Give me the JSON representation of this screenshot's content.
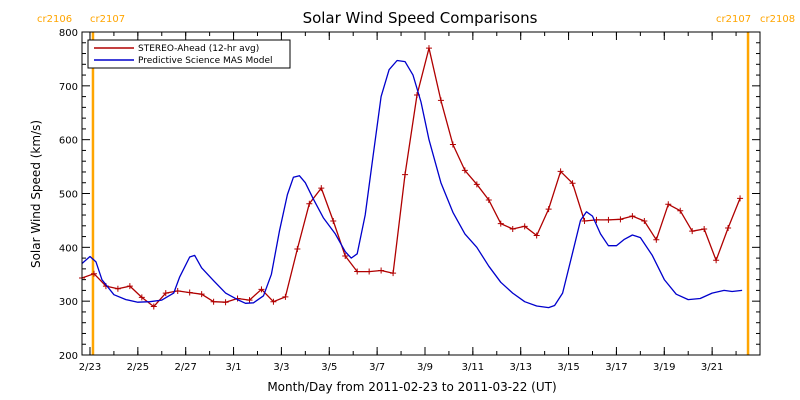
{
  "chart_data": {
    "type": "line",
    "title": "Solar Wind Speed Comparisons",
    "xlabel": "Month/Day from 2011-02-23 to 2011-03-22 (UT)",
    "ylabel": "Solar Wind Speed (km/s)",
    "xlim": [
      "2011-02-22T16:00",
      "2011-03-23T00:00"
    ],
    "ylim": [
      200,
      800
    ],
    "x_ticks": [
      "2/23",
      "2/25",
      "2/27",
      "3/1",
      "3/3",
      "3/5",
      "3/7",
      "3/9",
      "3/11",
      "3/13",
      "3/15",
      "3/17",
      "3/19",
      "3/21"
    ],
    "y_ticks": [
      200,
      300,
      400,
      500,
      600,
      700,
      800
    ],
    "legend_position": "top-left",
    "carrington_markers": [
      {
        "date": "2011-02-23T03:00",
        "left_label": "cr2106",
        "right_label": "cr2107"
      },
      {
        "date": "2011-03-22T12:00",
        "left_label": "cr2107",
        "right_label": "cr2108"
      }
    ],
    "marker_color": "#ffa500",
    "series": [
      {
        "name": "STEREO-Ahead (12-hr avg)",
        "color": "#b00000",
        "marker": "plus",
        "points": [
          [
            "2011-02-22T16:00",
            343
          ],
          [
            "2011-02-23T04:00",
            351
          ],
          [
            "2011-02-23T16:00",
            328
          ],
          [
            "2011-02-24T04:00",
            323
          ],
          [
            "2011-02-24T16:00",
            328
          ],
          [
            "2011-02-25T04:00",
            307
          ],
          [
            "2011-02-25T16:00",
            290
          ],
          [
            "2011-02-26T04:00",
            315
          ],
          [
            "2011-02-26T16:00",
            319
          ],
          [
            "2011-02-27T04:00",
            316
          ],
          [
            "2011-02-27T16:00",
            313
          ],
          [
            "2011-02-28T04:00",
            299
          ],
          [
            "2011-02-28T16:00",
            298
          ],
          [
            "2011-03-01T04:00",
            305
          ],
          [
            "2011-03-01T16:00",
            302
          ],
          [
            "2011-03-02T04:00",
            322
          ],
          [
            "2011-03-02T16:00",
            299
          ],
          [
            "2011-03-03T04:00",
            308
          ],
          [
            "2011-03-03T16:00",
            397
          ],
          [
            "2011-03-04T04:00",
            481
          ],
          [
            "2011-03-04T16:00",
            510
          ],
          [
            "2011-03-05T04:00",
            449
          ],
          [
            "2011-03-05T16:00",
            384
          ],
          [
            "2011-03-06T04:00",
            355
          ],
          [
            "2011-03-06T16:00",
            355
          ],
          [
            "2011-03-07T04:00",
            357
          ],
          [
            "2011-03-07T16:00",
            352
          ],
          [
            "2011-03-08T04:00",
            535
          ],
          [
            "2011-03-08T16:00",
            683
          ],
          [
            "2011-03-09T04:00",
            770
          ],
          [
            "2011-03-09T16:00",
            673
          ],
          [
            "2011-03-10T04:00",
            591
          ],
          [
            "2011-03-10T16:00",
            543
          ],
          [
            "2011-03-11T04:00",
            517
          ],
          [
            "2011-03-11T16:00",
            488
          ],
          [
            "2011-03-12T04:00",
            444
          ],
          [
            "2011-03-12T16:00",
            434
          ],
          [
            "2011-03-13T04:00",
            439
          ],
          [
            "2011-03-13T16:00",
            422
          ],
          [
            "2011-03-14T04:00",
            471
          ],
          [
            "2011-03-14T16:00",
            541
          ],
          [
            "2011-03-15T04:00",
            519
          ],
          [
            "2011-03-15T16:00",
            449
          ],
          [
            "2011-03-16T04:00",
            451
          ],
          [
            "2011-03-16T16:00",
            451
          ],
          [
            "2011-03-17T04:00",
            452
          ],
          [
            "2011-03-17T16:00",
            458
          ],
          [
            "2011-03-18T04:00",
            449
          ],
          [
            "2011-03-18T16:00",
            414
          ],
          [
            "2011-03-19T04:00",
            480
          ],
          [
            "2011-03-19T16:00",
            468
          ],
          [
            "2011-03-20T04:00",
            430
          ],
          [
            "2011-03-20T16:00",
            434
          ],
          [
            "2011-03-21T04:00",
            376
          ],
          [
            "2011-03-21T16:00",
            436
          ],
          [
            "2011-03-22T04:00",
            491
          ]
        ]
      },
      {
        "name": "Predictive Science MAS Model",
        "color": "#0000cc",
        "marker": "none",
        "points": [
          [
            "2011-02-22T16:00",
            370
          ],
          [
            "2011-02-23T00:00",
            383
          ],
          [
            "2011-02-23T06:00",
            373
          ],
          [
            "2011-02-23T12:00",
            340
          ],
          [
            "2011-02-24T00:00",
            312
          ],
          [
            "2011-02-24T12:00",
            303
          ],
          [
            "2011-02-25T00:00",
            298
          ],
          [
            "2011-02-25T12:00",
            299
          ],
          [
            "2011-02-26T00:00",
            302
          ],
          [
            "2011-02-26T12:00",
            315
          ],
          [
            "2011-02-26T18:00",
            345
          ],
          [
            "2011-02-27T04:00",
            382
          ],
          [
            "2011-02-27T09:00",
            385
          ],
          [
            "2011-02-27T16:00",
            362
          ],
          [
            "2011-02-28T04:00",
            338
          ],
          [
            "2011-02-28T16:00",
            315
          ],
          [
            "2011-03-01T04:00",
            303
          ],
          [
            "2011-03-01T12:00",
            296
          ],
          [
            "2011-03-01T20:00",
            297
          ],
          [
            "2011-03-02T06:00",
            310
          ],
          [
            "2011-03-02T14:00",
            350
          ],
          [
            "2011-03-02T22:00",
            430
          ],
          [
            "2011-03-03T06:00",
            498
          ],
          [
            "2011-03-03T12:00",
            530
          ],
          [
            "2011-03-03T18:00",
            533
          ],
          [
            "2011-03-04T00:00",
            520
          ],
          [
            "2011-03-04T08:00",
            490
          ],
          [
            "2011-03-04T18:00",
            455
          ],
          [
            "2011-03-05T06:00",
            425
          ],
          [
            "2011-03-05T16:00",
            392
          ],
          [
            "2011-03-05T22:00",
            380
          ],
          [
            "2011-03-06T04:00",
            388
          ],
          [
            "2011-03-06T12:00",
            460
          ],
          [
            "2011-03-06T20:00",
            570
          ],
          [
            "2011-03-07T04:00",
            680
          ],
          [
            "2011-03-07T12:00",
            730
          ],
          [
            "2011-03-07T20:00",
            747
          ],
          [
            "2011-03-08T04:00",
            745
          ],
          [
            "2011-03-08T12:00",
            720
          ],
          [
            "2011-03-08T20:00",
            670
          ],
          [
            "2011-03-09T04:00",
            600
          ],
          [
            "2011-03-09T16:00",
            520
          ],
          [
            "2011-03-10T04:00",
            465
          ],
          [
            "2011-03-10T16:00",
            425
          ],
          [
            "2011-03-11T04:00",
            400
          ],
          [
            "2011-03-11T16:00",
            365
          ],
          [
            "2011-03-12T04:00",
            335
          ],
          [
            "2011-03-12T16:00",
            315
          ],
          [
            "2011-03-13T04:00",
            299
          ],
          [
            "2011-03-13T16:00",
            291
          ],
          [
            "2011-03-14T04:00",
            288
          ],
          [
            "2011-03-14T10:00",
            292
          ],
          [
            "2011-03-14T18:00",
            315
          ],
          [
            "2011-03-15T04:00",
            390
          ],
          [
            "2011-03-15T12:00",
            450
          ],
          [
            "2011-03-15T18:00",
            466
          ],
          [
            "2011-03-16T00:00",
            458
          ],
          [
            "2011-03-16T08:00",
            425
          ],
          [
            "2011-03-16T16:00",
            403
          ],
          [
            "2011-03-17T00:00",
            403
          ],
          [
            "2011-03-17T08:00",
            415
          ],
          [
            "2011-03-17T16:00",
            423
          ],
          [
            "2011-03-18T00:00",
            418
          ],
          [
            "2011-03-18T12:00",
            385
          ],
          [
            "2011-03-19T00:00",
            340
          ],
          [
            "2011-03-19T12:00",
            313
          ],
          [
            "2011-03-20T00:00",
            303
          ],
          [
            "2011-03-20T12:00",
            305
          ],
          [
            "2011-03-21T00:00",
            315
          ],
          [
            "2011-03-21T12:00",
            320
          ],
          [
            "2011-03-21T20:00",
            318
          ],
          [
            "2011-03-22T06:00",
            320
          ]
        ]
      }
    ]
  }
}
